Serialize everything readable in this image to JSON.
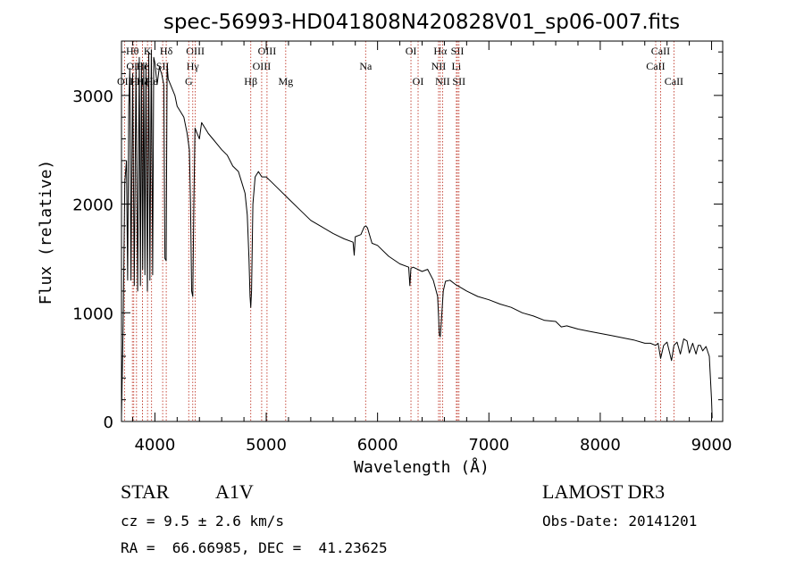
{
  "chart_data": {
    "type": "line",
    "title": "spec-56993-HD041808N420828V01_sp06-007.fits",
    "xlabel": "Wavelength (Å)",
    "ylabel": "Flux (relative)",
    "xlim": [
      3700,
      9100
    ],
    "ylim": [
      0,
      3500
    ],
    "xticks": [
      4000,
      5000,
      6000,
      7000,
      8000,
      9000
    ],
    "yticks": [
      0,
      1000,
      2000,
      3000
    ],
    "xtick_labels": [
      "4000",
      "5000",
      "6000",
      "7000",
      "8000",
      "9000"
    ],
    "ytick_labels": [
      "0",
      "1000",
      "2000",
      "3000"
    ],
    "grid": false,
    "series": [
      {
        "name": "flux",
        "x": [
          3700,
          3715,
          3730,
          3745,
          3755,
          3765,
          3775,
          3785,
          3800,
          3815,
          3830,
          3845,
          3860,
          3870,
          3880,
          3890,
          3900,
          3910,
          3920,
          3933,
          3945,
          3955,
          3968,
          3980,
          3990,
          4000,
          4010,
          4020,
          4040,
          4060,
          4080,
          4090,
          4101,
          4110,
          4120,
          4140,
          4160,
          4180,
          4200,
          4230,
          4260,
          4290,
          4310,
          4320,
          4330,
          4340,
          4350,
          4360,
          4380,
          4400,
          4420,
          4450,
          4480,
          4520,
          4560,
          4600,
          4650,
          4700,
          4750,
          4780,
          4810,
          4830,
          4845,
          4855,
          4861,
          4868,
          4880,
          4900,
          4930,
          4960,
          5000,
          5050,
          5100,
          5200,
          5300,
          5400,
          5500,
          5600,
          5700,
          5780,
          5790,
          5800,
          5850,
          5880,
          5895,
          5910,
          5950,
          6000,
          6100,
          6200,
          6280,
          6290,
          6300,
          6320,
          6400,
          6450,
          6500,
          6540,
          6555,
          6563,
          6572,
          6590,
          6610,
          6650,
          6700,
          6800,
          6900,
          7000,
          7100,
          7200,
          7300,
          7400,
          7500,
          7600,
          7650,
          7700,
          7800,
          7900,
          8000,
          8100,
          8200,
          8300,
          8400,
          8450,
          8498,
          8520,
          8542,
          8570,
          8600,
          8640,
          8662,
          8690,
          8720,
          8750,
          8780,
          8800,
          8830,
          8860,
          8880,
          8900,
          8920,
          8950,
          8980,
          9000,
          9005
        ],
        "y": [
          50,
          900,
          2200,
          2400,
          1300,
          2900,
          3250,
          1300,
          3200,
          1250,
          3250,
          1200,
          3350,
          1250,
          3300,
          1400,
          3300,
          1350,
          3300,
          1200,
          3400,
          1300,
          3420,
          1350,
          3350,
          3300,
          3200,
          3100,
          3260,
          3200,
          3100,
          1500,
          1480,
          3280,
          3150,
          3100,
          3050,
          3000,
          2900,
          2850,
          2800,
          2650,
          2500,
          2000,
          1200,
          1150,
          2000,
          2700,
          2650,
          2600,
          2750,
          2700,
          2650,
          2600,
          2550,
          2500,
          2450,
          2350,
          2300,
          2200,
          2100,
          1900,
          1500,
          1150,
          1050,
          1200,
          2000,
          2250,
          2300,
          2250,
          2250,
          2200,
          2150,
          2050,
          1950,
          1850,
          1790,
          1730,
          1680,
          1650,
          1530,
          1700,
          1720,
          1790,
          1800,
          1780,
          1640,
          1620,
          1520,
          1450,
          1420,
          1250,
          1410,
          1420,
          1380,
          1400,
          1300,
          1150,
          800,
          780,
          900,
          1200,
          1290,
          1300,
          1260,
          1200,
          1150,
          1120,
          1080,
          1050,
          1000,
          970,
          930,
          920,
          870,
          880,
          850,
          830,
          810,
          790,
          770,
          750,
          720,
          720,
          700,
          720,
          580,
          700,
          730,
          560,
          700,
          730,
          620,
          760,
          740,
          630,
          720,
          620,
          700,
          700,
          650,
          690,
          600,
          200,
          30
        ]
      }
    ],
    "lines": [
      {
        "label": "OII",
        "wavelength": 3727,
        "row": 2
      },
      {
        "label": "Hθ",
        "wavelength": 3798,
        "row": 0
      },
      {
        "label": "OII",
        "wavelength": 3810,
        "row": 1
      },
      {
        "label": "Hη",
        "wavelength": 3835,
        "row": 2
      },
      {
        "label": "He",
        "wavelength": 3889,
        "row": 1
      },
      {
        "label": "Hζ",
        "wavelength": 3889,
        "row": 2
      },
      {
        "label": "K",
        "wavelength": 3934,
        "row": 0
      },
      {
        "label": "Hε",
        "wavelength": 3970,
        "row": 2
      },
      {
        "label": "SII",
        "wavelength": 4070,
        "row": 1
      },
      {
        "label": "Hδ",
        "wavelength": 4102,
        "row": 0
      },
      {
        "label": "OIII",
        "wavelength": 4363,
        "row": 0
      },
      {
        "label": "Hγ",
        "wavelength": 4340,
        "row": 1
      },
      {
        "label": "G",
        "wavelength": 4304,
        "row": 2
      },
      {
        "label": "Hβ",
        "wavelength": 4861,
        "row": 2
      },
      {
        "label": "OIII",
        "wavelength": 5007,
        "row": 0
      },
      {
        "label": "OIII",
        "wavelength": 4959,
        "row": 1
      },
      {
        "label": "Mg",
        "wavelength": 5175,
        "row": 2
      },
      {
        "label": "Na",
        "wavelength": 5893,
        "row": 1
      },
      {
        "label": "OI",
        "wavelength": 6300,
        "row": 0
      },
      {
        "label": "OI",
        "wavelength": 6364,
        "row": 2
      },
      {
        "label": "Hα",
        "wavelength": 6563,
        "row": 0
      },
      {
        "label": "NII",
        "wavelength": 6548,
        "row": 1
      },
      {
        "label": "NII",
        "wavelength": 6584,
        "row": 2
      },
      {
        "label": "SII",
        "wavelength": 6717,
        "row": 0
      },
      {
        "label": "Li",
        "wavelength": 6708,
        "row": 1
      },
      {
        "label": "SII",
        "wavelength": 6731,
        "row": 2
      },
      {
        "label": "CaII",
        "wavelength": 8542,
        "row": 0
      },
      {
        "label": "CaII",
        "wavelength": 8498,
        "row": 1
      },
      {
        "label": "CaII",
        "wavelength": 8662,
        "row": 2
      }
    ]
  },
  "info": {
    "object_class": "STAR",
    "subclass": "A1V",
    "survey": "LAMOST DR3",
    "redshift": "cz = 9.5 ± 2.6 km/s",
    "obs_date": "Obs-Date: 20141201",
    "coords": "RA =  66.66985, DEC =  41.23625"
  }
}
